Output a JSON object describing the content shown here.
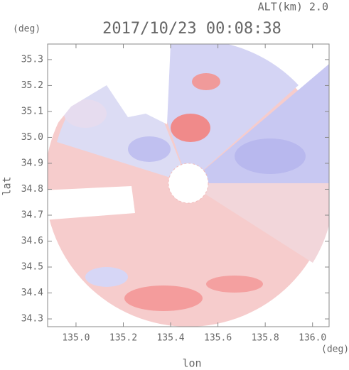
{
  "chart_data": {
    "type": "radar-ppi",
    "title": "2017/10/23 00:08:38",
    "subtitle": "ALT(km) 2.0",
    "x_label": "lon",
    "y_label": "lat",
    "x_unit": "(deg)",
    "y_unit": "(deg)",
    "xlim": [
      134.88,
      136.07
    ],
    "ylim": [
      34.27,
      35.36
    ],
    "xticks": [
      {
        "value": 135.0,
        "label": "135.0"
      },
      {
        "value": 135.2,
        "label": "135.2"
      },
      {
        "value": 135.4,
        "label": "135.4"
      },
      {
        "value": 135.6,
        "label": "135.6"
      },
      {
        "value": 135.8,
        "label": "135.8"
      },
      {
        "value": 136.0,
        "label": "136.0"
      }
    ],
    "yticks": [
      {
        "value": 34.3,
        "label": "34.3"
      },
      {
        "value": 34.4,
        "label": "34.4"
      },
      {
        "value": 34.5,
        "label": "34.5"
      },
      {
        "value": 34.6,
        "label": "34.6"
      },
      {
        "value": 34.7,
        "label": "34.7"
      },
      {
        "value": 34.8,
        "label": "34.8"
      },
      {
        "value": 34.9,
        "label": "34.9"
      },
      {
        "value": 35.0,
        "label": "35.0"
      },
      {
        "value": 35.1,
        "label": "35.1"
      },
      {
        "value": 35.2,
        "label": "35.2"
      },
      {
        "value": 35.3,
        "label": "35.3"
      }
    ]
  }
}
